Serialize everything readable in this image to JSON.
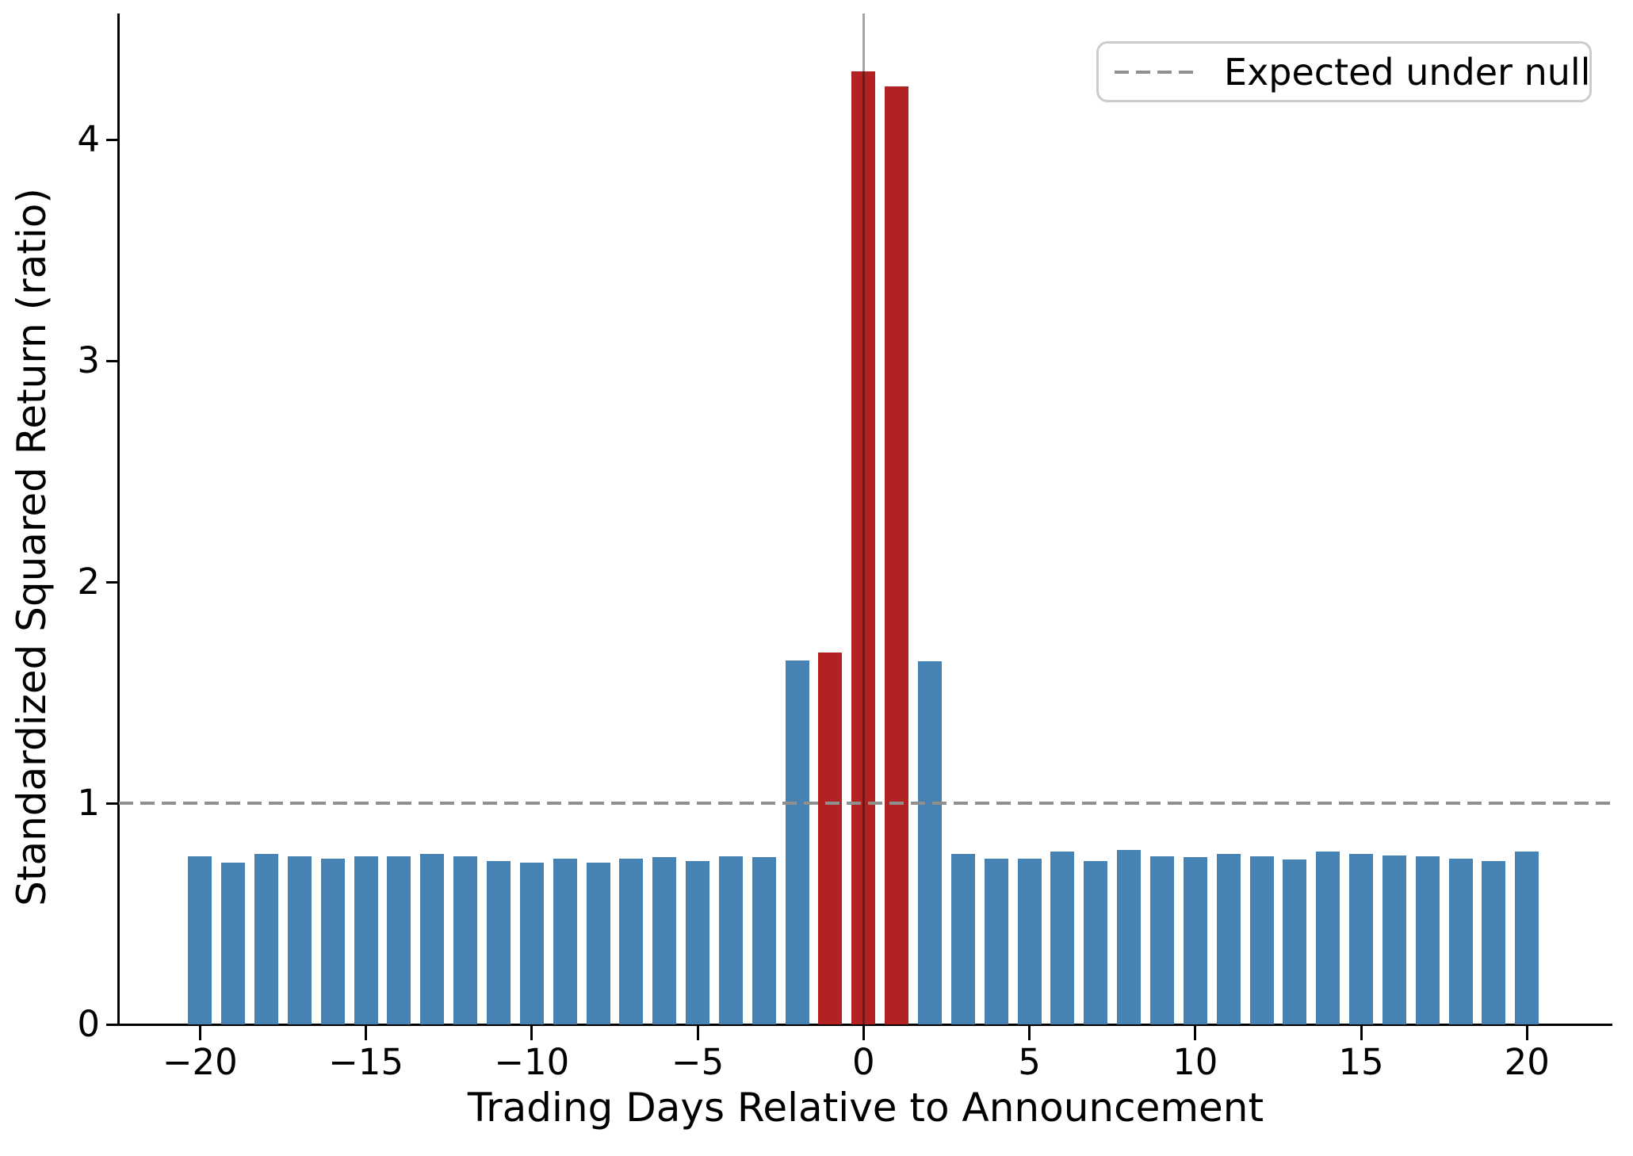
{
  "chart_data": {
    "type": "bar",
    "title": "",
    "xlabel": "Trading Days Relative to Announcement",
    "ylabel": "Standardized Squared Return (ratio)",
    "x": [
      -20,
      -19,
      -18,
      -17,
      -16,
      -15,
      -14,
      -13,
      -12,
      -11,
      -10,
      -9,
      -8,
      -7,
      -6,
      -5,
      -4,
      -3,
      -2,
      -1,
      0,
      1,
      2,
      3,
      4,
      5,
      6,
      7,
      8,
      9,
      10,
      11,
      12,
      13,
      14,
      15,
      16,
      17,
      18,
      19,
      20
    ],
    "values": [
      0.76,
      0.73,
      0.77,
      0.76,
      0.75,
      0.76,
      0.76,
      0.77,
      0.76,
      0.74,
      0.73,
      0.75,
      0.73,
      0.75,
      0.755,
      0.74,
      0.76,
      0.755,
      1.645,
      1.68,
      4.31,
      4.24,
      1.64,
      0.77,
      0.75,
      0.75,
      0.78,
      0.74,
      0.79,
      0.76,
      0.755,
      0.77,
      0.76,
      0.745,
      0.78,
      0.77,
      0.765,
      0.76,
      0.75,
      0.74,
      0.78
    ],
    "highlight_x": [
      -1,
      0,
      1
    ],
    "xticks": [
      -20,
      -15,
      -10,
      -5,
      0,
      5,
      10,
      15,
      20
    ],
    "xtick_labels": [
      "−20",
      "−15",
      "−10",
      "−5",
      "0",
      "5",
      "10",
      "15",
      "20"
    ],
    "yticks": [
      0,
      1,
      2,
      3,
      4
    ],
    "ytick_labels": [
      "0",
      "1",
      "2",
      "3",
      "4"
    ],
    "xlim": [
      -22.5,
      22.5
    ],
    "ylim": [
      0,
      4.57
    ],
    "grid": false,
    "bar_width_units": 0.72,
    "reference_line": {
      "y": 1.0,
      "style": "dashed"
    },
    "event_line": {
      "x": 0
    },
    "legend": {
      "position": "upper right",
      "entries": [
        {
          "label": "Expected under null",
          "marker": "dashed-line"
        }
      ]
    },
    "colors": {
      "bar": "#4682b4",
      "highlight_bar": "#b22222",
      "reference_line": "#8f8f8f",
      "event_line": "rgba(0,0,0,0.35)",
      "axis": "#000000",
      "legend_border": "#cccccc"
    }
  }
}
